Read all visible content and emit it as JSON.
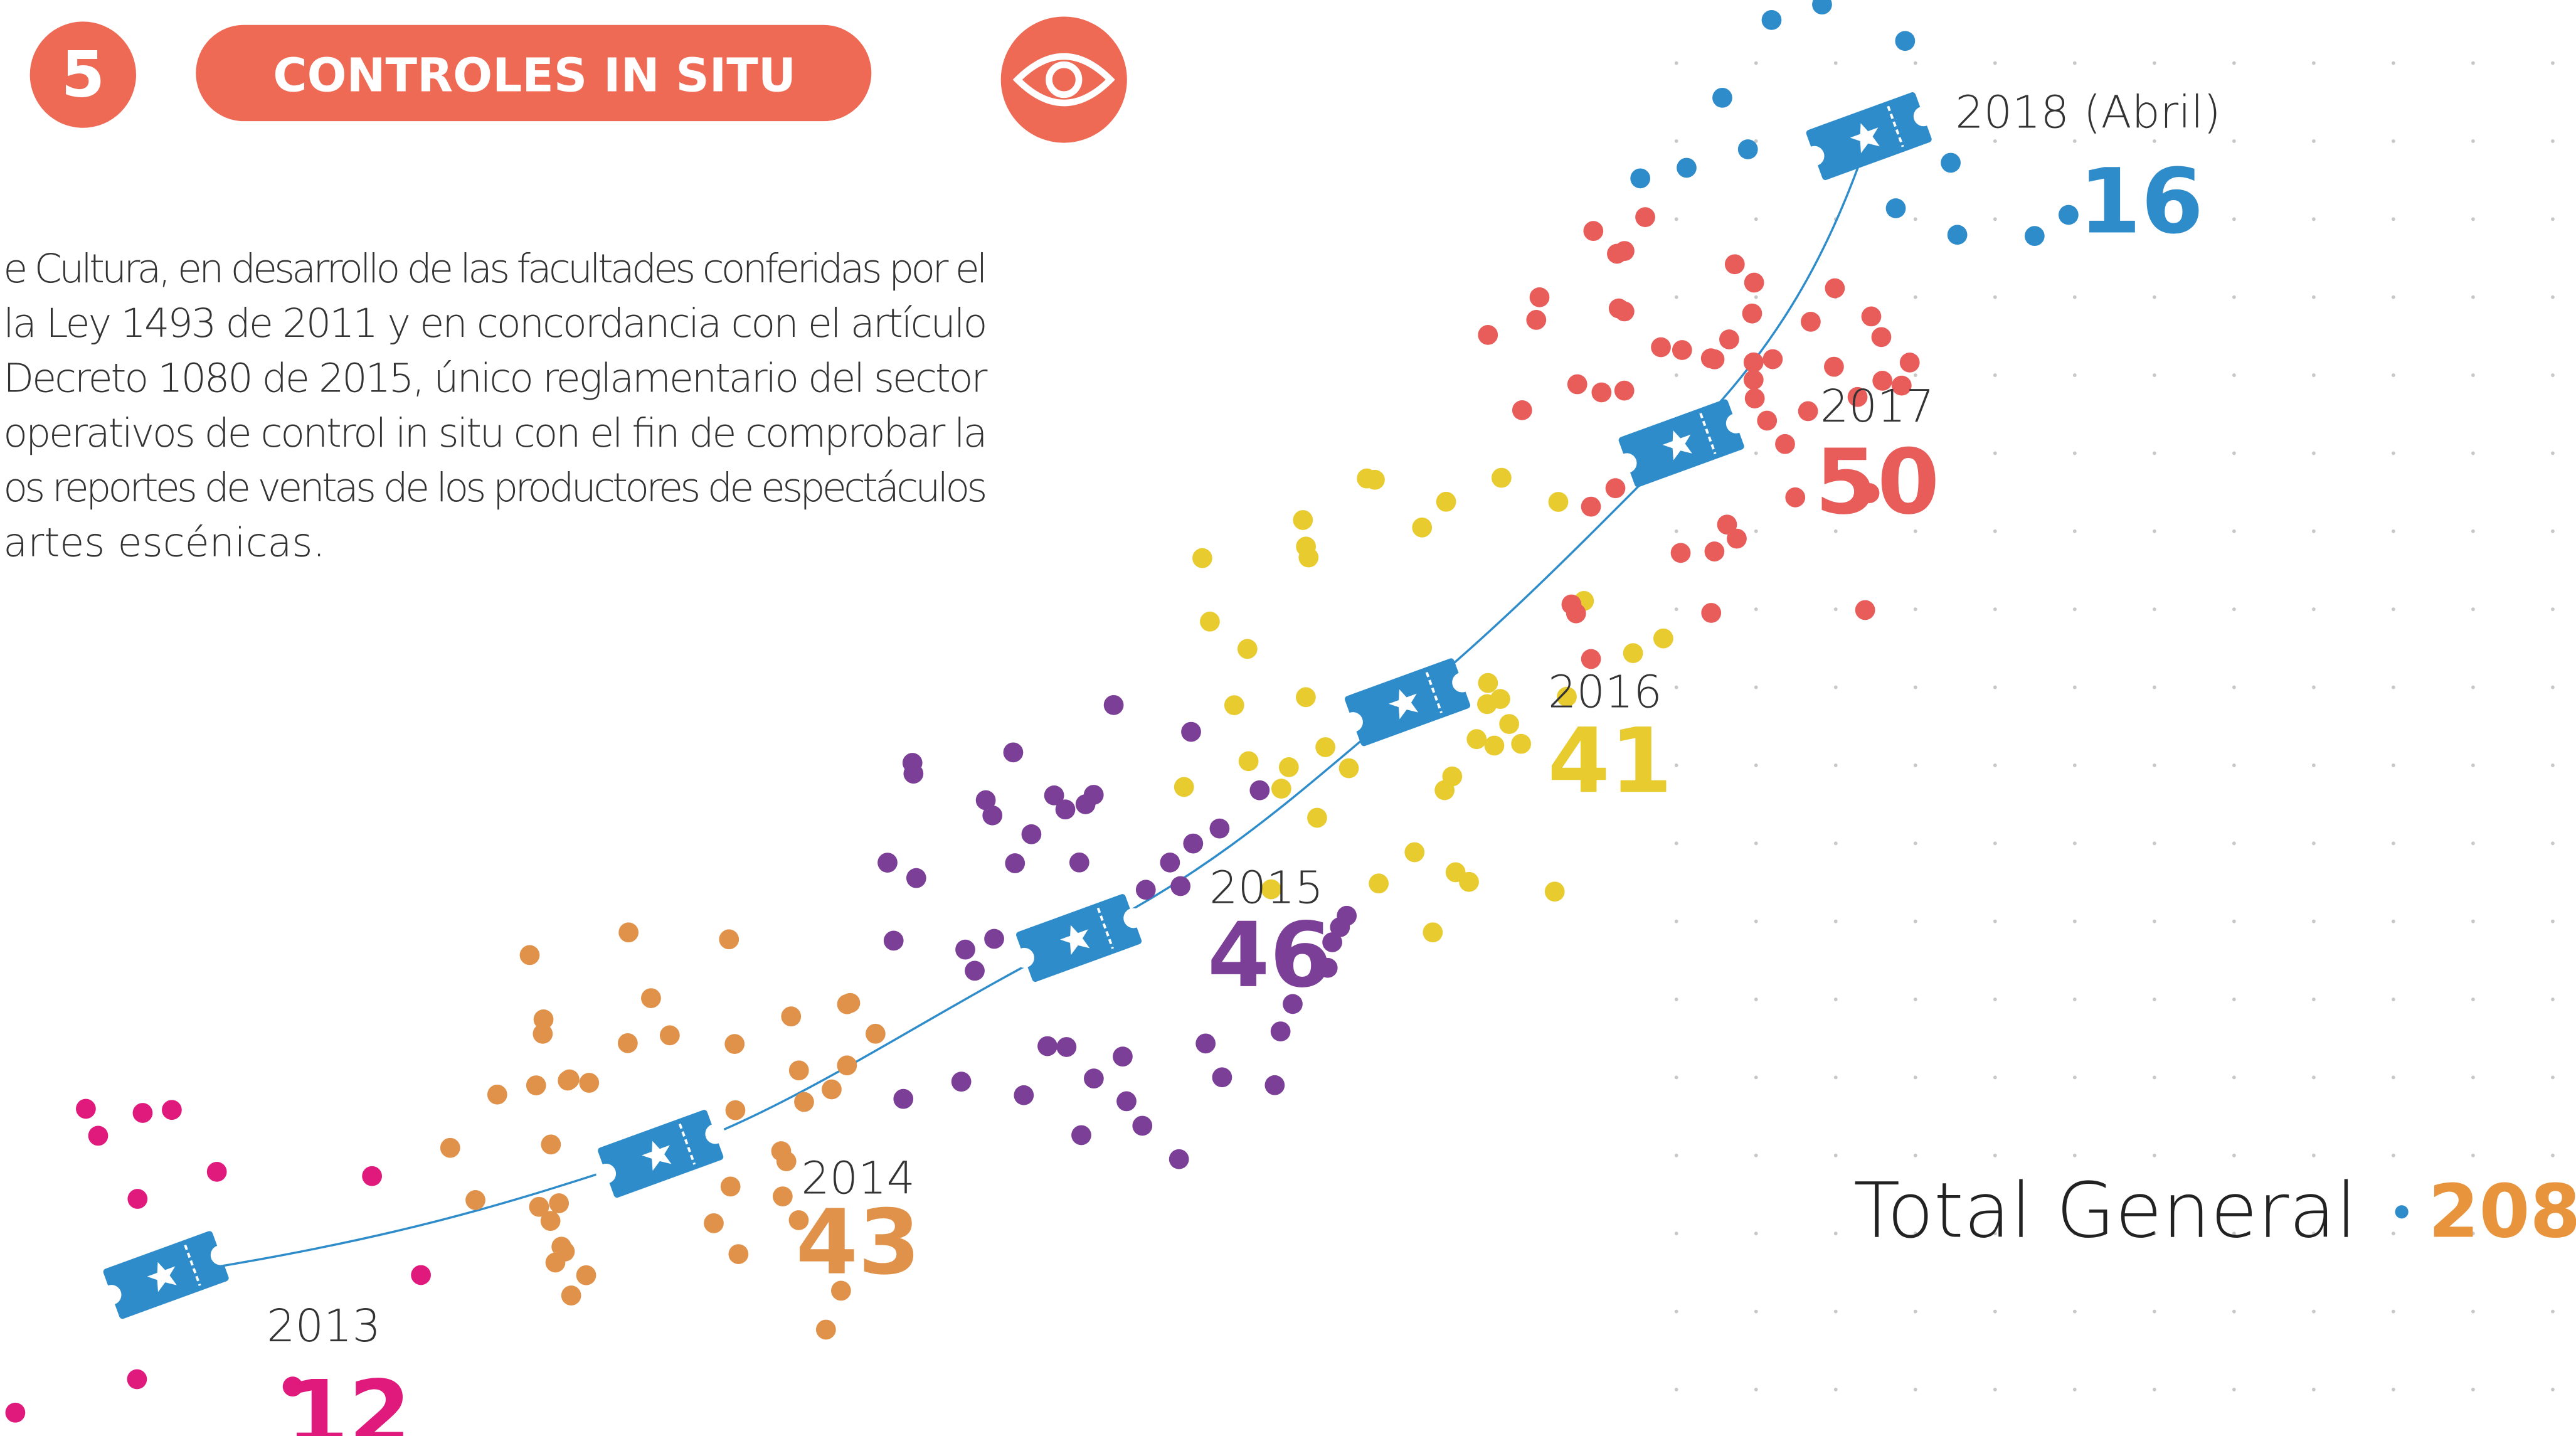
{
  "header": {
    "number": "5",
    "title": "CONTROLES IN SITU"
  },
  "paragraph": [
    "e Cultura, en desarrollo de las facultades conferidas por el",
    "la Ley 1493 de 2011 y en concordancia con el artículo",
    "Decreto 1080 de 2015, único reglamentario del sector",
    "operativos de control in situ con el fin de comprobar la",
    "os reportes de ventas de los productores de espectáculos",
    "artes escénicas."
  ],
  "years": [
    {
      "year": "2013",
      "value": 12,
      "color": "#e0197d"
    },
    {
      "year": "2014",
      "value": 43,
      "color": "#e0924a"
    },
    {
      "year": "2015",
      "value": 46,
      "color": "#7b3f98"
    },
    {
      "year": "2016",
      "value": 41,
      "color": "#e8cb2f"
    },
    {
      "year": "2017",
      "value": 50,
      "color": "#e85c5a"
    },
    {
      "year": "2018 (Abril)",
      "value": 16,
      "color": "#2f8ccb"
    }
  ],
  "total": {
    "label": "Total General",
    "value": 208
  }
}
